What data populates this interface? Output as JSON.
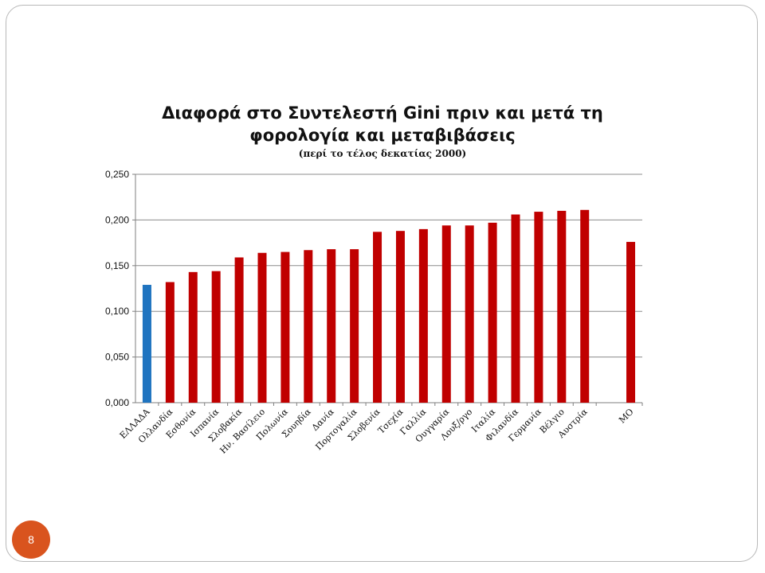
{
  "slide": {
    "page_number": "8"
  },
  "chart_data": {
    "type": "bar",
    "title_line1": "Διαφορά στο Συντελεστή Gini πριν και μετά τη",
    "title_line2": "φορολογία και μεταβιβάσεις",
    "subtitle": "(περί το τέλος δεκατίας 2000)",
    "xlabel": "",
    "ylabel": "",
    "ylim": [
      0,
      0.25
    ],
    "yticks": [
      "0,000",
      "0,050",
      "0,100",
      "0,150",
      "0,200",
      "0,250"
    ],
    "grid": true,
    "categories": [
      "ΕΛΛΑΔΑ",
      "Ολλανδία",
      "Εσθονία",
      "Ισπανία",
      "Σλοβακία",
      "Ην. Βασίλειο",
      "Πολωνία",
      "Σουηδία",
      "Δανία",
      "Πορτογαλία",
      "Σλοβενία",
      "Τσεχία",
      "Γαλλία",
      "Ουγγαρία",
      "Λουξ/ργο",
      "Ιταλία",
      "Φιλανδία",
      "Γερμανία",
      "Βέλγιο",
      "Αυστρία",
      "ΜΟ"
    ],
    "values": [
      0.129,
      0.132,
      0.143,
      0.144,
      0.159,
      0.164,
      0.165,
      0.167,
      0.168,
      0.168,
      0.187,
      0.188,
      0.19,
      0.194,
      0.194,
      0.197,
      0.206,
      0.209,
      0.21,
      0.211,
      0.176
    ],
    "colors": {
      "highlight": "#1f74c0",
      "default": "#c00000"
    },
    "highlight_index": 0
  }
}
